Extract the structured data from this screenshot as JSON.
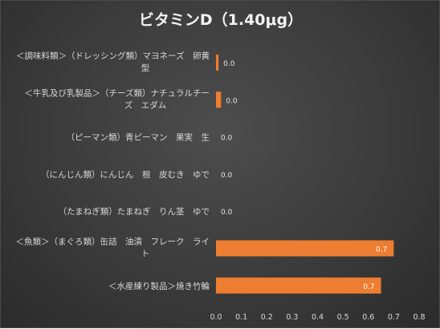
{
  "chart_data": {
    "type": "bar",
    "orientation": "horizontal",
    "title": "ビタミンD（1.40μg）",
    "xlabel": "",
    "ylabel": "",
    "xlim": [
      0,
      0.8
    ],
    "x_ticks": [
      "0.0",
      "0.1",
      "0.2",
      "0.3",
      "0.4",
      "0.5",
      "0.6",
      "0.7",
      "0.8"
    ],
    "grid": false,
    "legend": "none",
    "bar_color": "#ed7d31",
    "background_color": "#3b3b3b",
    "text_color": "#d9d9d9",
    "categories": [
      [
        "＜調味料類＞（ドレッシング類）マヨネーズ　卵黄",
        "型"
      ],
      [
        "＜牛乳及び乳製品＞（チーズ類）ナチュラルチー",
        "ズ　エダム"
      ],
      [
        "（ピーマン類）青ピーマン　果実　生"
      ],
      [
        "（にんじん類）にんじん　根　皮むき　ゆで"
      ],
      [
        "（たまねぎ類）たまねぎ　りん茎　ゆで"
      ],
      [
        "＜魚類＞（まぐろ類）缶詰　油漬　フレーク　ライ",
        "ト"
      ],
      [
        "＜水産練り製品＞焼き竹輪"
      ]
    ],
    "values": [
      0.01,
      0.02,
      0.0,
      0.0,
      0.0,
      0.7,
      0.65
    ],
    "data_labels": [
      "0.0",
      "0.0",
      "0.0",
      "0.0",
      "0.0",
      "0.7",
      "0.7"
    ]
  }
}
